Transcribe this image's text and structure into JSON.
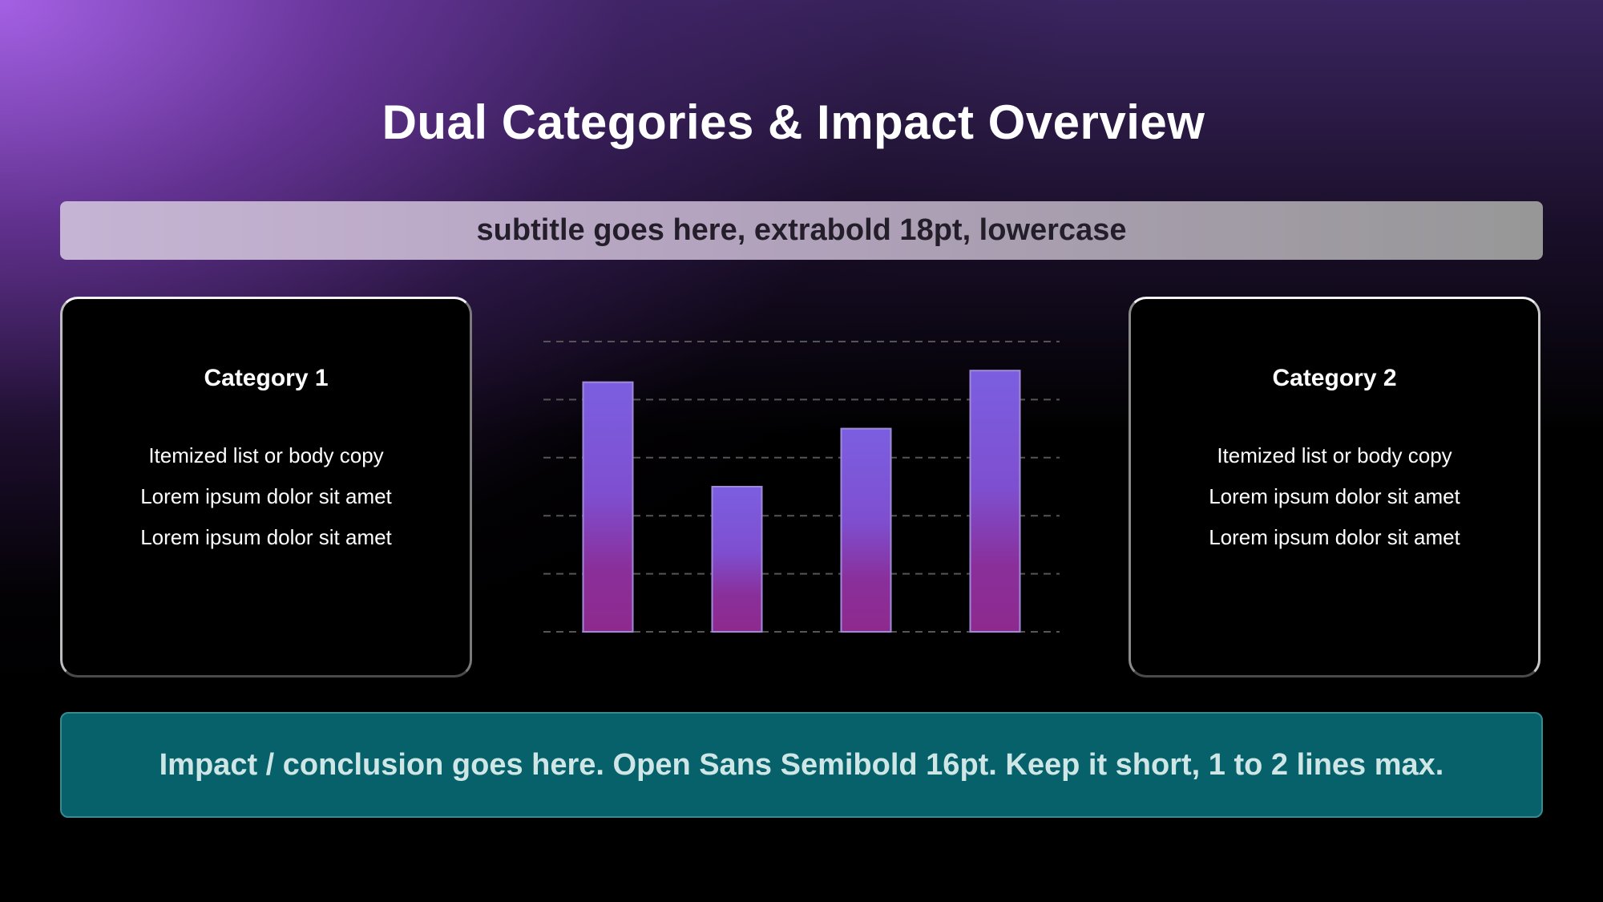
{
  "title": "Dual Categories & Impact Overview",
  "subtitle": "subtitle goes here, extrabold 18pt, lowercase",
  "left_card": {
    "title": "Category 1",
    "items": [
      "Itemized list or body copy",
      "Lorem ipsum dolor sit amet",
      "Lorem ipsum dolor sit amet"
    ]
  },
  "right_card": {
    "title": "Category 2",
    "items": [
      "Itemized list or body copy",
      "Lorem ipsum dolor sit amet",
      "Lorem ipsum dolor sit amet"
    ]
  },
  "conclusion": "Impact / conclusion goes here. Open Sans Semibold 16pt. Keep it short, 1 to 2 lines max.",
  "colors": {
    "bar_top": "#7b5fe0",
    "bar_bottom": "#8e2a8e",
    "conclusion_bg": "#06616a",
    "gridline": "#555555"
  },
  "chart_data": {
    "type": "bar",
    "categories": [
      "",
      "",
      "",
      ""
    ],
    "values": [
      4.3,
      2.5,
      3.5,
      4.5
    ],
    "ylim": [
      0,
      5
    ],
    "grid": true,
    "gridline_style": "dashed"
  }
}
